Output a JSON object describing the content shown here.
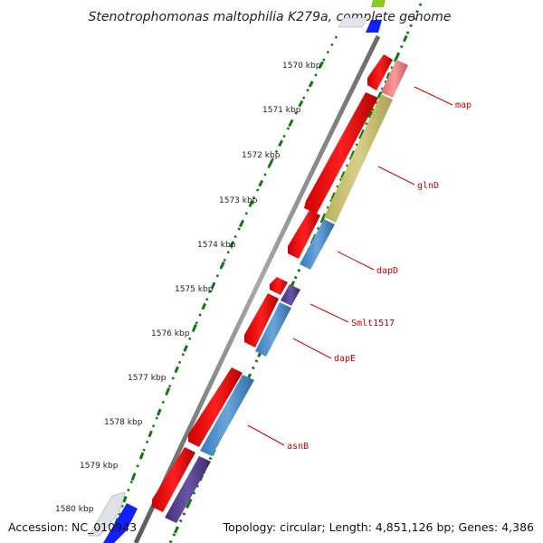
{
  "header": {
    "title": "Stenotrophomonas maltophilia K279a, complete genome"
  },
  "footer": {
    "accession": "Accession: NC_010943",
    "topology": "Topology: circular; Length: 4,851,126 bp; Genes: 4,386"
  },
  "ruler": {
    "labels": [
      "1570 kbp",
      "1571 kbp",
      "1572 kbp",
      "1573 kbp",
      "1574 kbp",
      "1575 kbp",
      "1576 kbp",
      "1577 kbp",
      "1578 kbp",
      "1579 kbp",
      "1580 kbp"
    ]
  },
  "genes": [
    {
      "name": "map"
    },
    {
      "name": "glnD"
    },
    {
      "name": "dapD"
    },
    {
      "name": "Smlt1517"
    },
    {
      "name": "dapE"
    },
    {
      "name": "asnB"
    }
  ],
  "colors": {
    "cds": "#ff0000",
    "map_feature": "#f08080",
    "glnD_feature": "#c8c070",
    "dap_feature": "#4a8ccc",
    "smlt_feature": "#553c8c",
    "asnB_feature": "#4a8ccc",
    "backbone": "#888888",
    "ticks": "#117711",
    "label": "#cc0000"
  }
}
